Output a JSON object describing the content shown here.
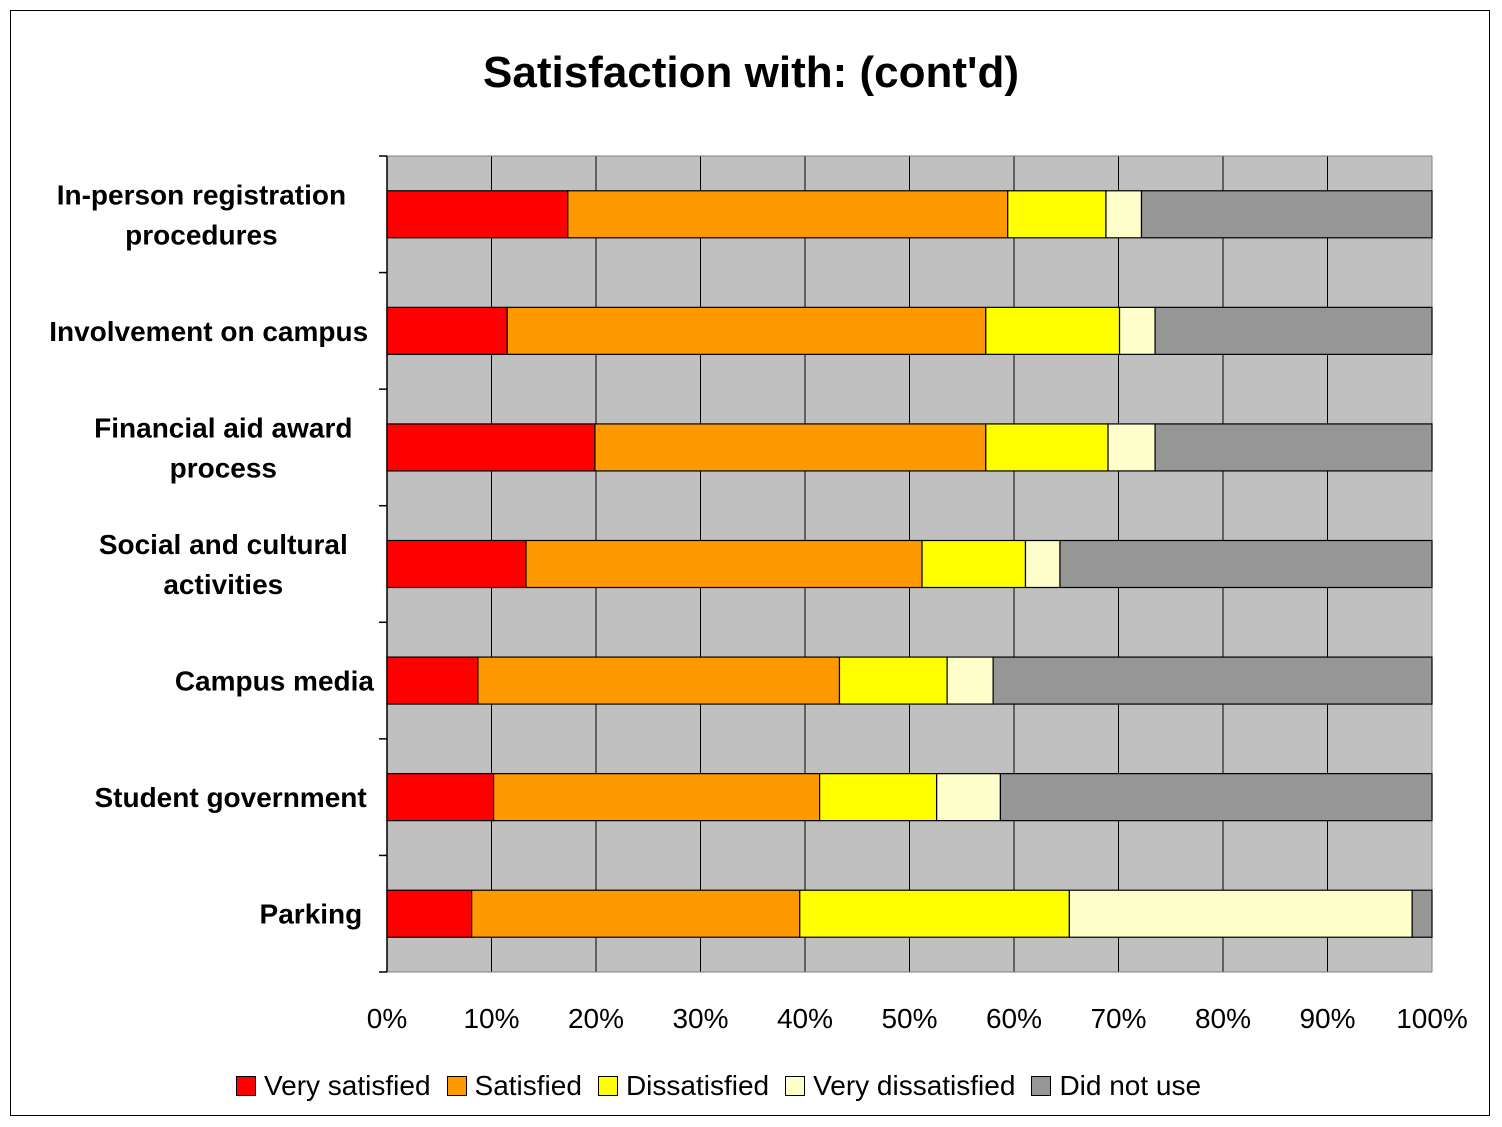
{
  "chart_data": {
    "type": "bar",
    "orientation": "horizontal",
    "stacked": "percent",
    "title": "Satisfaction with: (cont'd)",
    "categories": [
      "In-person registration procedures",
      "Involvement on campus",
      "Financial aid award process",
      "Social and cultural activities",
      "Campus media",
      "Student government",
      "Parking"
    ],
    "category_label_lines": [
      [
        "In-person registration",
        "procedures"
      ],
      [
        "Involvement on campus"
      ],
      [
        "Financial aid award",
        "process"
      ],
      [
        "Social and cultural",
        "activities"
      ],
      [
        "Campus media"
      ],
      [
        "Student government"
      ],
      [
        "Parking"
      ]
    ],
    "series": [
      {
        "name": "Very satisfied",
        "color": "#ff0000",
        "values": [
          17.3,
          11.5,
          19.9,
          13.3,
          8.7,
          10.2,
          8.1
        ]
      },
      {
        "name": "Satisfied",
        "color": "#ff9900",
        "values": [
          42.1,
          45.8,
          37.4,
          37.9,
          34.6,
          31.2,
          31.4
        ]
      },
      {
        "name": "Dissatisfied",
        "color": "#ffff00",
        "values": [
          9.4,
          12.8,
          11.7,
          9.9,
          10.3,
          11.2,
          25.8
        ]
      },
      {
        "name": "Very dissatisfied",
        "color": "#ffffcc",
        "values": [
          3.4,
          3.4,
          4.5,
          3.3,
          4.4,
          6.1,
          32.8
        ]
      },
      {
        "name": "Did not use",
        "color": "#969696",
        "values": [
          27.8,
          26.5,
          26.5,
          35.6,
          42.0,
          41.3,
          1.9
        ]
      }
    ],
    "xlim": [
      0,
      100
    ],
    "xticks": [
      "0%",
      "10%",
      "20%",
      "30%",
      "40%",
      "50%",
      "60%",
      "70%",
      "80%",
      "90%",
      "100%"
    ],
    "grid": true,
    "plot_background": "#c0c0c0",
    "legend_position": "bottom"
  }
}
